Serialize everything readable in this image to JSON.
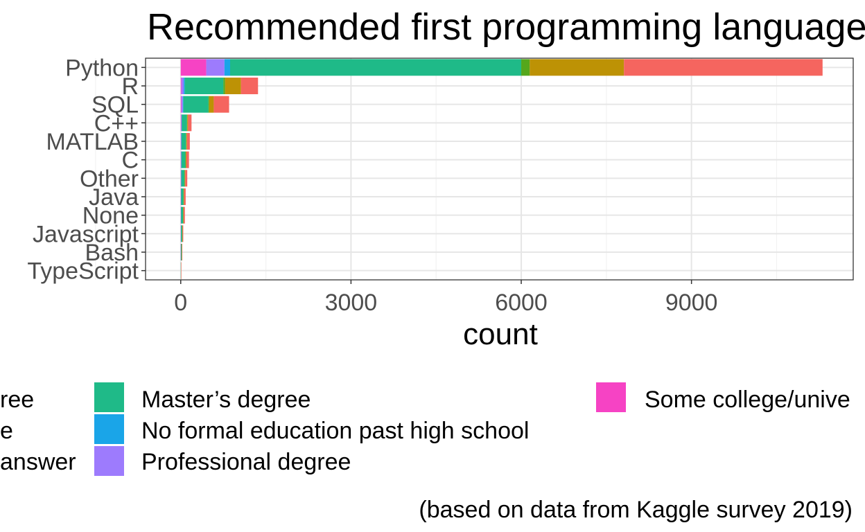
{
  "chart_data": {
    "type": "bar",
    "orientation": "horizontal",
    "stacked": true,
    "title": "Recommended first programming language",
    "xlabel": "count",
    "ylabel": "",
    "caption": "(based on data from Kaggle survey 2019)",
    "categories": [
      "Python",
      "R",
      "SQL",
      "C++",
      "MATLAB",
      "C",
      "Other",
      "Java",
      "None",
      "Javascript",
      "Bash",
      "TypeScript"
    ],
    "xlim": [
      -620,
      11850
    ],
    "xticks": [
      0,
      3000,
      6000,
      9000
    ],
    "xtick_labels": [
      "0",
      "3000",
      "6000",
      "9000"
    ],
    "grid": true,
    "legend_position": "bottom",
    "legend_visible_labels": [
      "ree",
      "e",
      "answer",
      "Master’s degree",
      "No formal education past high school",
      "Professional degree",
      "Some college/unive"
    ],
    "series": [
      {
        "name": "Some college/university study without earning a bachelor’s degree",
        "color": "#F643C4",
        "values": [
          450,
          12,
          12,
          8,
          5,
          5,
          4,
          3,
          3,
          2,
          1,
          0
        ]
      },
      {
        "name": "Professional degree",
        "color": "#9D7BFD",
        "values": [
          320,
          40,
          25,
          6,
          5,
          5,
          4,
          3,
          2,
          2,
          1,
          0
        ]
      },
      {
        "name": "No formal education past high school",
        "color": "#1AA5E8",
        "values": [
          100,
          20,
          10,
          5,
          3,
          3,
          3,
          2,
          2,
          1,
          1,
          0
        ]
      },
      {
        "name": "Master’s degree",
        "color": "#1FBA88",
        "values": [
          5130,
          680,
          440,
          90,
          80,
          70,
          55,
          40,
          35,
          20,
          12,
          3
        ]
      },
      {
        "name": "",
        "color": "#55A71C",
        "values": [
          150,
          30,
          15,
          6,
          5,
          5,
          4,
          3,
          3,
          2,
          1,
          0
        ]
      },
      {
        "name": "",
        "color": "#BD9205",
        "values": [
          1660,
          280,
          80,
          15,
          12,
          12,
          10,
          8,
          6,
          5,
          3,
          1
        ]
      },
      {
        "name": "",
        "color": "#F5655F",
        "values": [
          3500,
          300,
          270,
          60,
          50,
          45,
          35,
          28,
          22,
          12,
          8,
          2
        ]
      }
    ]
  }
}
